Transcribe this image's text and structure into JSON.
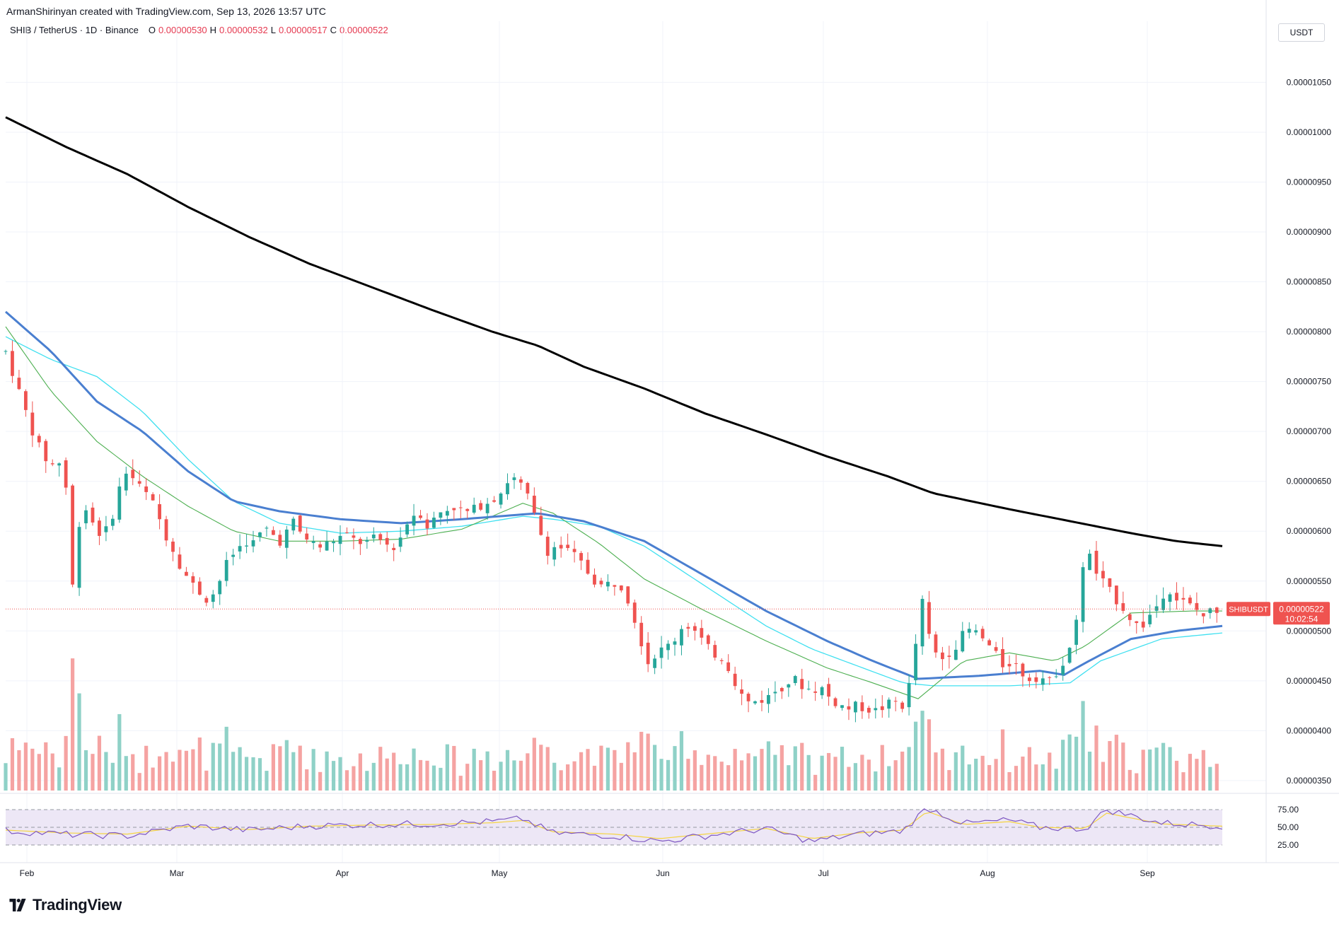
{
  "header": {
    "text": "ArmanShirinyan created with TradingView.com, Sep 13, 2026 13:57 UTC"
  },
  "legend": {
    "symbol": "SHIB / TetherUS · 1D · Binance",
    "open_label": "O",
    "open": "0.00000530",
    "high_label": "H",
    "high": "0.00000532",
    "low_label": "L",
    "low": "0.00000517",
    "close_label": "C",
    "close": "0.00000522"
  },
  "currency_button": "USDT",
  "brand": {
    "name": "TradingView"
  },
  "price_tag": {
    "symbol": "SHIBUSDT",
    "price": "0.00000522",
    "countdown": "10:02:54"
  },
  "colors": {
    "up": "#26a69a",
    "down": "#ef5350",
    "up_volume": "#8fd1c7",
    "down_volume": "#f5a3a2",
    "ma_black": "#000000",
    "ma_blue": "#4a7fd0",
    "ma_green": "#4caf50",
    "ma_cyan": "#40e0f0",
    "rsi": "#7e57c2",
    "rsi_ma": "#f5d442",
    "rsi_band": "#ede7f6"
  },
  "chart_data": {
    "type": "candlestick",
    "x_labels": [
      "Feb",
      "Mar",
      "Apr",
      "May",
      "Jun",
      "Jul",
      "Aug",
      "Sep"
    ],
    "y_ticks": [
      "0.00001050",
      "0.00001000",
      "0.00000950",
      "0.00000900",
      "0.00000850",
      "0.00000800",
      "0.00000750",
      "0.00000700",
      "0.00000650",
      "0.00000600",
      "0.00000550",
      "0.00000500",
      "0.00000450",
      "0.00000400",
      "0.00000350"
    ],
    "y_tick_values": [
      1050,
      1000,
      950,
      900,
      850,
      800,
      750,
      700,
      650,
      600,
      550,
      500,
      450,
      400,
      350
    ],
    "y_unit_scale": 1e-08,
    "y_range": [
      340,
      1090
    ],
    "current_price": 522,
    "close_series_approx": [
      [
        0,
        780
      ],
      [
        6,
        725
      ],
      [
        10,
        690
      ],
      [
        14,
        668
      ],
      [
        17,
        665
      ],
      [
        19,
        680
      ],
      [
        22,
        545
      ],
      [
        25,
        632
      ],
      [
        28,
        612
      ],
      [
        31,
        598
      ],
      [
        34,
        602
      ],
      [
        37,
        640
      ],
      [
        40,
        662
      ],
      [
        43,
        648
      ],
      [
        46,
        638
      ],
      [
        49,
        625
      ],
      [
        52,
        600
      ],
      [
        55,
        582
      ],
      [
        58,
        562
      ],
      [
        61,
        548
      ],
      [
        64,
        538
      ],
      [
        67,
        530
      ],
      [
        70,
        548
      ],
      [
        73,
        570
      ],
      [
        76,
        582
      ],
      [
        79,
        590
      ],
      [
        82,
        588
      ],
      [
        85,
        604
      ],
      [
        88,
        596
      ],
      [
        91,
        588
      ],
      [
        94,
        612
      ],
      [
        97,
        598
      ],
      [
        100,
        590
      ],
      [
        103,
        584
      ],
      [
        106,
        588
      ],
      [
        109,
        593
      ],
      [
        112,
        596
      ],
      [
        115,
        590
      ],
      [
        118,
        588
      ],
      [
        121,
        592
      ],
      [
        124,
        590
      ],
      [
        127,
        582
      ],
      [
        130,
        595
      ],
      [
        133,
        615
      ],
      [
        136,
        620
      ],
      [
        139,
        603
      ],
      [
        142,
        618
      ],
      [
        145,
        622
      ],
      [
        148,
        625
      ],
      [
        151,
        618
      ],
      [
        154,
        622
      ],
      [
        157,
        628
      ],
      [
        160,
        632
      ],
      [
        163,
        640
      ],
      [
        166,
        655
      ],
      [
        169,
        648
      ],
      [
        172,
        632
      ],
      [
        175,
        605
      ],
      [
        178,
        580
      ],
      [
        181,
        585
      ],
      [
        184,
        582
      ],
      [
        187,
        575
      ],
      [
        190,
        565
      ],
      [
        193,
        552
      ],
      [
        196,
        545
      ],
      [
        199,
        548
      ],
      [
        202,
        548
      ],
      [
        205,
        530
      ],
      [
        208,
        500
      ],
      [
        211,
        468
      ],
      [
        214,
        478
      ],
      [
        217,
        483
      ],
      [
        220,
        492
      ],
      [
        223,
        508
      ],
      [
        226,
        502
      ],
      [
        229,
        490
      ],
      [
        232,
        478
      ],
      [
        235,
        475
      ],
      [
        238,
        462
      ],
      [
        241,
        440
      ],
      [
        244,
        428
      ],
      [
        247,
        430
      ],
      [
        250,
        432
      ],
      [
        253,
        440
      ],
      [
        256,
        446
      ],
      [
        259,
        452
      ],
      [
        262,
        445
      ],
      [
        265,
        440
      ],
      [
        268,
        444
      ],
      [
        271,
        432
      ],
      [
        274,
        426
      ],
      [
        277,
        422
      ],
      [
        280,
        425
      ],
      [
        283,
        422
      ],
      [
        286,
        420
      ],
      [
        289,
        424
      ],
      [
        292,
        430
      ],
      [
        295,
        425
      ],
      [
        298,
        455
      ],
      [
        301,
        535
      ],
      [
        304,
        488
      ],
      [
        307,
        470
      ],
      [
        310,
        478
      ],
      [
        313,
        488
      ],
      [
        316,
        502
      ],
      [
        319,
        498
      ],
      [
        322,
        490
      ],
      [
        325,
        478
      ],
      [
        328,
        465
      ],
      [
        331,
        470
      ],
      [
        334,
        458
      ],
      [
        337,
        452
      ],
      [
        340,
        455
      ],
      [
        343,
        448
      ],
      [
        346,
        462
      ],
      [
        349,
        475
      ],
      [
        352,
        508
      ],
      [
        355,
        588
      ],
      [
        358,
        560
      ],
      [
        361,
        548
      ],
      [
        364,
        535
      ],
      [
        367,
        525
      ],
      [
        370,
        512
      ],
      [
        373,
        502
      ],
      [
        376,
        515
      ],
      [
        379,
        528
      ],
      [
        382,
        545
      ],
      [
        385,
        532
      ],
      [
        388,
        528
      ],
      [
        391,
        522
      ],
      [
        394,
        515
      ],
      [
        397,
        522
      ],
      [
        400,
        522
      ]
    ],
    "ma_series_approx": {
      "black": [
        [
          0,
          1015
        ],
        [
          20,
          985
        ],
        [
          40,
          958
        ],
        [
          60,
          925
        ],
        [
          80,
          895
        ],
        [
          100,
          868
        ],
        [
          120,
          845
        ],
        [
          140,
          822
        ],
        [
          160,
          800
        ],
        [
          175,
          786
        ],
        [
          190,
          765
        ],
        [
          210,
          743
        ],
        [
          230,
          718
        ],
        [
          250,
          697
        ],
        [
          270,
          675
        ],
        [
          290,
          655
        ],
        [
          305,
          638
        ],
        [
          330,
          622
        ],
        [
          350,
          610
        ],
        [
          370,
          598
        ],
        [
          385,
          590
        ],
        [
          400,
          585
        ]
      ],
      "blue": [
        [
          0,
          820
        ],
        [
          15,
          780
        ],
        [
          30,
          730
        ],
        [
          45,
          700
        ],
        [
          60,
          660
        ],
        [
          75,
          630
        ],
        [
          90,
          620
        ],
        [
          110,
          612
        ],
        [
          130,
          608
        ],
        [
          150,
          612
        ],
        [
          175,
          618
        ],
        [
          190,
          610
        ],
        [
          210,
          590
        ],
        [
          230,
          555
        ],
        [
          250,
          520
        ],
        [
          270,
          490
        ],
        [
          285,
          470
        ],
        [
          300,
          452
        ],
        [
          320,
          455
        ],
        [
          340,
          460
        ],
        [
          348,
          456
        ],
        [
          355,
          468
        ],
        [
          370,
          492
        ],
        [
          385,
          500
        ],
        [
          400,
          505
        ]
      ],
      "green": [
        [
          0,
          805
        ],
        [
          15,
          740
        ],
        [
          30,
          690
        ],
        [
          45,
          655
        ],
        [
          60,
          625
        ],
        [
          75,
          600
        ],
        [
          90,
          590
        ],
        [
          110,
          590
        ],
        [
          130,
          592
        ],
        [
          150,
          602
        ],
        [
          170,
          628
        ],
        [
          180,
          618
        ],
        [
          195,
          588
        ],
        [
          210,
          552
        ],
        [
          230,
          520
        ],
        [
          250,
          490
        ],
        [
          270,
          463
        ],
        [
          285,
          448
        ],
        [
          300,
          432
        ],
        [
          315,
          470
        ],
        [
          330,
          478
        ],
        [
          345,
          470
        ],
        [
          355,
          485
        ],
        [
          370,
          518
        ],
        [
          390,
          520
        ],
        [
          400,
          520
        ]
      ],
      "cyan": [
        [
          0,
          795
        ],
        [
          15,
          772
        ],
        [
          30,
          755
        ],
        [
          45,
          720
        ],
        [
          60,
          672
        ],
        [
          75,
          630
        ],
        [
          90,
          608
        ],
        [
          110,
          598
        ],
        [
          130,
          600
        ],
        [
          150,
          605
        ],
        [
          170,
          615
        ],
        [
          180,
          612
        ],
        [
          195,
          605
        ],
        [
          210,
          585
        ],
        [
          230,
          545
        ],
        [
          250,
          505
        ],
        [
          265,
          482
        ],
        [
          280,
          465
        ],
        [
          295,
          448
        ],
        [
          305,
          445
        ],
        [
          330,
          445
        ],
        [
          350,
          448
        ],
        [
          360,
          470
        ],
        [
          380,
          492
        ],
        [
          400,
          498
        ]
      ]
    },
    "rsi": {
      "levels": [
        75.0,
        50.0,
        25.0
      ],
      "level_labels": [
        "75.00",
        "50.00",
        "25.00"
      ],
      "values_approx": [
        [
          0,
          45
        ],
        [
          20,
          40
        ],
        [
          40,
          38
        ],
        [
          60,
          52
        ],
        [
          80,
          46
        ],
        [
          100,
          52
        ],
        [
          120,
          54
        ],
        [
          140,
          55
        ],
        [
          160,
          58
        ],
        [
          170,
          62
        ],
        [
          180,
          42
        ],
        [
          200,
          38
        ],
        [
          215,
          30
        ],
        [
          230,
          38
        ],
        [
          250,
          48
        ],
        [
          265,
          30
        ],
        [
          280,
          40
        ],
        [
          295,
          45
        ],
        [
          303,
          78
        ],
        [
          315,
          55
        ],
        [
          330,
          60
        ],
        [
          340,
          50
        ],
        [
          355,
          48
        ],
        [
          362,
          75
        ],
        [
          380,
          56
        ],
        [
          400,
          52
        ]
      ]
    }
  }
}
